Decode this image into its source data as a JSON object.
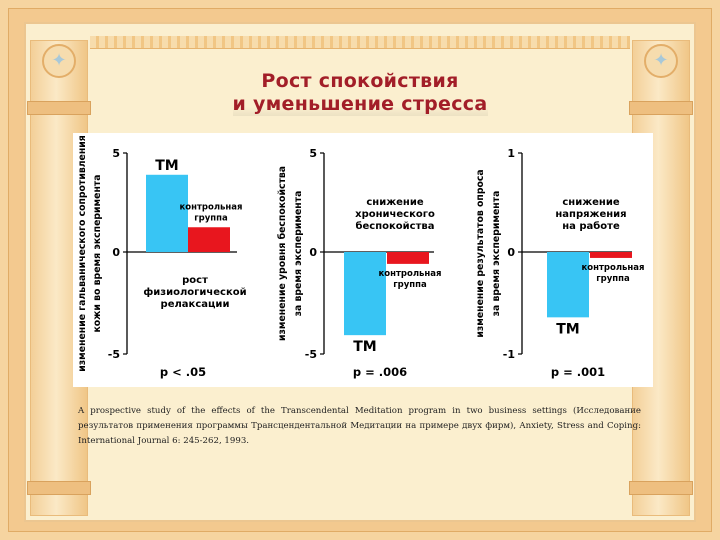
{
  "title": {
    "line1": "Рост спокойствия",
    "line2": "и уменьшение стресса"
  },
  "chart_data": [
    {
      "type": "bar",
      "ylabel_line1": "изменение гальванического сопротивления",
      "ylabel_line2": "кожи во время эксперимента",
      "ylim": [
        -5,
        5
      ],
      "ticks": [
        "5",
        "0",
        "-5"
      ],
      "series": [
        {
          "name": "TM",
          "label": "TM",
          "value": 3.9,
          "color": "#38c5f4"
        },
        {
          "name": "control",
          "label": "контрольная группа",
          "label_line1": "контрольная",
          "label_line2": "группа",
          "value": 1.25,
          "color": "#e8161e"
        }
      ],
      "annotation_lines": [
        "рост",
        "физиологической",
        "релаксации"
      ],
      "pvalue": "p < .05"
    },
    {
      "type": "bar",
      "ylabel_line1": "изменение уровня беспокойства",
      "ylabel_line2": "за время эксперимента",
      "ylim": [
        -5,
        5
      ],
      "ticks": [
        "5",
        "0",
        "-5"
      ],
      "series": [
        {
          "name": "TM",
          "label": "TM",
          "value": -4.2,
          "color": "#38c5f4"
        },
        {
          "name": "control",
          "label": "контрольная группа",
          "label_line1": "контрольная",
          "label_line2": "группа",
          "value": -0.6,
          "color": "#e8161e"
        }
      ],
      "annotation_lines": [
        "снижение",
        "хронического",
        "беспокойства"
      ],
      "pvalue": "p = .006"
    },
    {
      "type": "bar",
      "ylabel_line1": "изменение результатов опроса",
      "ylabel_line2": "за время эксперимента",
      "ylim": [
        -1,
        1
      ],
      "ticks": [
        "1",
        "0",
        "-1"
      ],
      "series": [
        {
          "name": "TM",
          "label": "TM",
          "value": -0.66,
          "color": "#38c5f4"
        },
        {
          "name": "control",
          "label": "контрольная группа",
          "label_line1": "контрольная",
          "label_line2": "группа",
          "value": -0.06,
          "color": "#e8161e"
        }
      ],
      "annotation_lines": [
        "снижение",
        "напряжения",
        "на работе"
      ],
      "pvalue": "p = .001"
    }
  ],
  "caption": "A prospective study of the effects of the Transcendental Meditation program in two business settings (Исследование результатов применения программы Трансцендентальной Медитации на примере двух фирм), Anxiety, Stress and Coping: International Journal 6: 245-262, 1993."
}
